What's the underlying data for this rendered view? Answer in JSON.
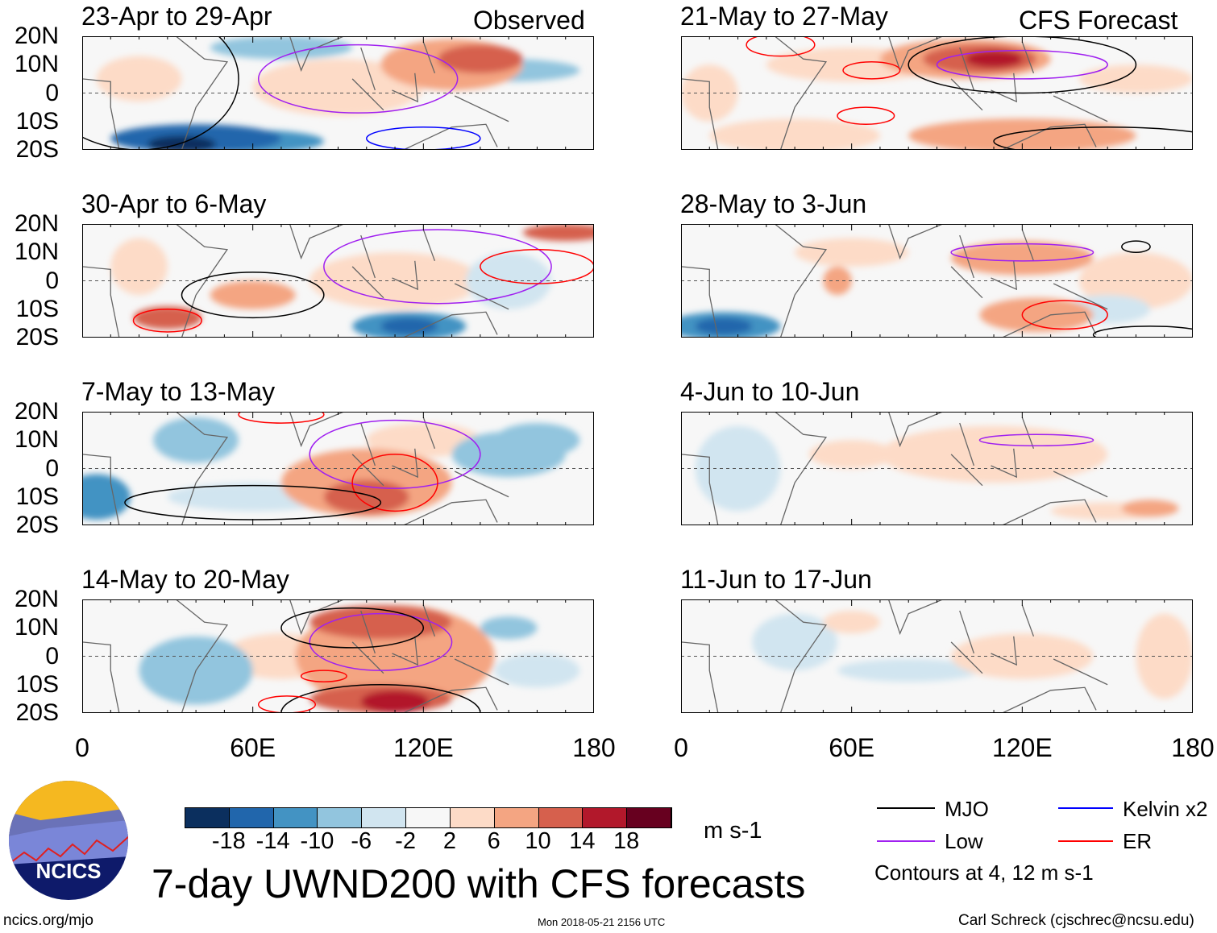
{
  "header_labels": {
    "observed": "Observed",
    "forecast": "CFS Forecast"
  },
  "panels": [
    {
      "title": "23-Apr to 29-Apr",
      "column": "observed"
    },
    {
      "title": "30-Apr to 6-May",
      "column": "observed"
    },
    {
      "title": "7-May to 13-May",
      "column": "observed"
    },
    {
      "title": "14-May to 20-May",
      "column": "observed"
    },
    {
      "title": "21-May to 27-May",
      "column": "forecast"
    },
    {
      "title": "28-May to 3-Jun",
      "column": "forecast"
    },
    {
      "title": "4-Jun to 10-Jun",
      "column": "forecast"
    },
    {
      "title": "11-Jun to 17-Jun",
      "column": "forecast"
    }
  ],
  "lat_labels": [
    "20N",
    "10N",
    "0",
    "10S",
    "20S"
  ],
  "lon_labels": [
    "0",
    "60E",
    "120E",
    "180"
  ],
  "colorbar": {
    "colors": [
      "#0b2f5e",
      "#2166ac",
      "#4393c3",
      "#92c5de",
      "#d1e5f0",
      "#f7f7f7",
      "#fddbc7",
      "#f4a582",
      "#d6604d",
      "#b2182b",
      "#67001f"
    ],
    "labels": [
      "-18",
      "-14",
      "-10",
      "-6",
      "-2",
      "2",
      "6",
      "10",
      "14",
      "18"
    ],
    "units": "m s-1"
  },
  "legend": {
    "items": [
      {
        "label": "MJO",
        "color": "#000000"
      },
      {
        "label": "Kelvin x2",
        "color": "#0000ff"
      },
      {
        "label": "Low",
        "color": "#a020f0"
      },
      {
        "label": "ER",
        "color": "#ff0000"
      }
    ],
    "note": "Contours at 4, 12 m s-1"
  },
  "title": "7-day UWND200 with CFS forecasts",
  "logo_text": "NCICS",
  "footer": {
    "left": "ncics.org/mjo",
    "center": "Mon 2018-05-21 2156 UTC",
    "right": "Carl Schreck (cjschrec@ncsu.edu)"
  },
  "chart_data": {
    "type": "heatmap",
    "title": "7-day UWND200 with CFS forecasts",
    "variable": "200-hPa zonal wind anomaly",
    "units": "m s-1",
    "xlim": [
      0,
      180
    ],
    "ylim": [
      -20,
      20
    ],
    "xticks": [
      "0",
      "60E",
      "120E",
      "180"
    ],
    "yticks": [
      "20N",
      "10N",
      "0",
      "10S",
      "20S"
    ],
    "contour_levels": [
      4,
      12
    ]
  }
}
